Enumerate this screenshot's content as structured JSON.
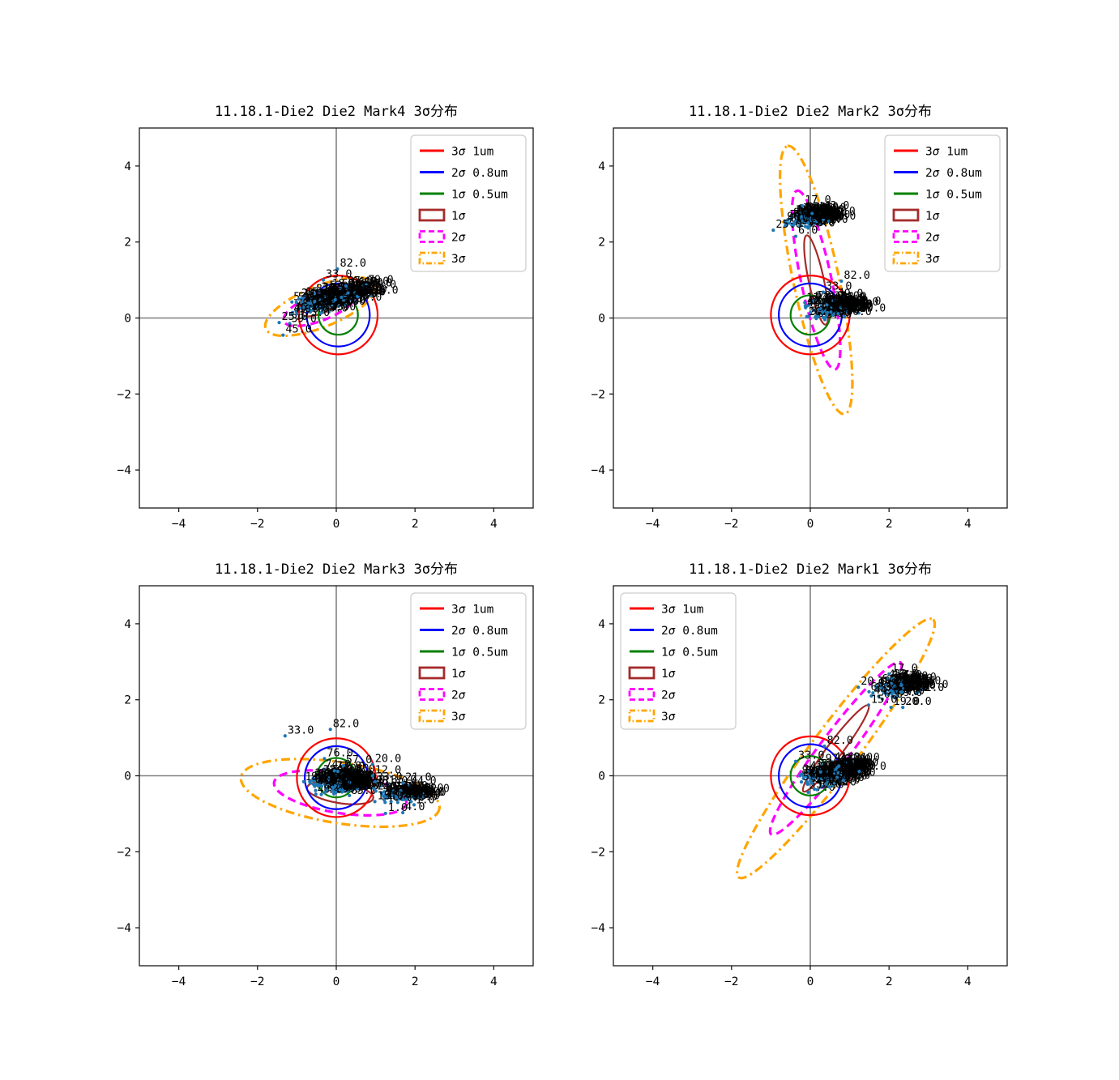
{
  "colors": {
    "red": "#ff0000",
    "blue": "#0000ff",
    "green": "#008000",
    "brown": "#a52a2a",
    "magenta": "#ff00ff",
    "orange": "#ffa500",
    "crosshair": "#808080",
    "dot": "#1f77b4",
    "text": "#000000",
    "legend_frame": "#cccccc"
  },
  "legend": {
    "items": [
      {
        "swatch": "line",
        "color": "red",
        "label": "3σ 1um"
      },
      {
        "swatch": "line",
        "color": "blue",
        "label": "2σ 0.8um"
      },
      {
        "swatch": "line",
        "color": "green",
        "label": "1σ 0.5um"
      },
      {
        "swatch": "rect-solid",
        "color": "brown",
        "label": "1σ"
      },
      {
        "swatch": "rect-dashed",
        "color": "magenta",
        "label": "2σ"
      },
      {
        "swatch": "rect-dashdot",
        "color": "orange",
        "label": "3σ"
      }
    ]
  },
  "chart_data": [
    {
      "type": "scatter",
      "title": "11.18.1-Die2 Die2 Mark4 3σ分布",
      "xlim": [
        -5,
        5
      ],
      "ylim": [
        -5,
        5
      ],
      "xticks": [
        -4,
        -2,
        0,
        2,
        4
      ],
      "yticks": [
        -4,
        -2,
        0,
        2,
        4
      ],
      "grid": false,
      "legend_loc": "upper-right",
      "circle_center": [
        0.05,
        0.08
      ],
      "circles": [
        {
          "label": "3σ 1um",
          "r": 1.0,
          "color": "red"
        },
        {
          "label": "2σ 0.8um",
          "r": 0.8,
          "color": "blue"
        },
        {
          "label": "1σ 0.5um",
          "r": 0.5,
          "color": "green"
        }
      ],
      "ellipse_center": [
        -0.4,
        0.3
      ],
      "ellipse_angle": 22,
      "ellipses": [
        {
          "label": "1σ",
          "a": 0.5,
          "b": 0.18,
          "color": "brown",
          "dash": "solid"
        },
        {
          "label": "2σ",
          "a": 1.0,
          "b": 0.36,
          "color": "magenta",
          "dash": "dashed"
        },
        {
          "label": "3σ",
          "a": 1.5,
          "b": 0.54,
          "color": "orange",
          "dash": "dashdot"
        }
      ],
      "clusters": [
        {
          "cx": -0.22,
          "cy": 0.45,
          "sx": 0.5,
          "sy": 0.13,
          "angle": 18,
          "count": 140,
          "seed": 7
        }
      ],
      "callouts": [
        {
          "x": 0.03,
          "y": 1.29,
          "text": "82.0"
        },
        {
          "x": -0.33,
          "y": 1.0,
          "text": "33.0"
        },
        {
          "x": -0.95,
          "y": 0.5,
          "text": "20.0"
        },
        {
          "x": -1.45,
          "y": -0.12,
          "text": "25.0"
        },
        {
          "x": -1.35,
          "y": -0.45,
          "text": "45.0"
        }
      ]
    },
    {
      "type": "scatter",
      "title": "11.18.1-Die2 Die2 Mark2 3σ分布",
      "xlim": [
        -5,
        5
      ],
      "ylim": [
        -5,
        5
      ],
      "xticks": [
        -4,
        -2,
        0,
        2,
        4
      ],
      "yticks": [
        -4,
        -2,
        0,
        2,
        4
      ],
      "grid": false,
      "legend_loc": "upper-right",
      "circle_center": [
        0.0,
        0.08
      ],
      "circles": [
        {
          "label": "3σ 1um",
          "r": 1.0,
          "color": "red"
        },
        {
          "label": "2σ 0.8um",
          "r": 0.8,
          "color": "blue"
        },
        {
          "label": "1σ 0.5um",
          "r": 0.5,
          "color": "green"
        }
      ],
      "ellipse_center": [
        0.15,
        1.0
      ],
      "ellipse_angle": 102,
      "ellipses": [
        {
          "label": "1σ",
          "a": 1.16,
          "b": 0.2,
          "color": "brown",
          "dash": "solid"
        },
        {
          "label": "2σ",
          "a": 2.32,
          "b": 0.4,
          "color": "magenta",
          "dash": "dashed"
        },
        {
          "label": "3σ",
          "a": 3.48,
          "b": 0.6,
          "color": "orange",
          "dash": "dashdot"
        }
      ],
      "clusters": [
        {
          "cx": -0.15,
          "cy": 2.6,
          "sx": 0.28,
          "sy": 0.11,
          "angle": 5,
          "count": 85,
          "seed": 11
        },
        {
          "cx": 0.55,
          "cy": 0.25,
          "sx": 0.3,
          "sy": 0.12,
          "angle": 8,
          "count": 95,
          "seed": 12
        }
      ],
      "callouts": [
        {
          "x": -0.2,
          "y": 2.95,
          "text": "17.0"
        },
        {
          "x": -0.94,
          "y": 2.31,
          "text": "25.0"
        },
        {
          "x": -0.37,
          "y": 2.15,
          "text": "6.0"
        },
        {
          "x": 0.79,
          "y": 0.97,
          "text": "82.0"
        },
        {
          "x": 0.33,
          "y": 0.68,
          "text": "33.0"
        }
      ]
    },
    {
      "type": "scatter",
      "title": "11.18.1-Die2 Die2 Mark3 3σ分布",
      "xlim": [
        -5,
        5
      ],
      "ylim": [
        -5,
        5
      ],
      "xticks": [
        -4,
        -2,
        0,
        2,
        4
      ],
      "yticks": [
        -4,
        -2,
        0,
        2,
        4
      ],
      "grid": false,
      "legend_loc": "upper-right",
      "circle_center": [
        0.0,
        -0.05
      ],
      "circles": [
        {
          "label": "3σ 1um",
          "r": 1.0,
          "color": "red"
        },
        {
          "label": "2σ 0.8um",
          "r": 0.8,
          "color": "blue"
        },
        {
          "label": "1σ 0.5um",
          "r": 0.5,
          "color": "green"
        }
      ],
      "ellipse_center": [
        0.1,
        -0.45
      ],
      "ellipse_angle": -9,
      "ellipses": [
        {
          "label": "1σ",
          "a": 0.85,
          "b": 0.27,
          "color": "brown",
          "dash": "solid"
        },
        {
          "label": "2σ",
          "a": 1.7,
          "b": 0.53,
          "color": "magenta",
          "dash": "dashed"
        },
        {
          "label": "3σ",
          "a": 2.55,
          "b": 0.8,
          "color": "orange",
          "dash": "dashdot"
        }
      ],
      "clusters": [
        {
          "cx": -0.08,
          "cy": -0.2,
          "sx": 0.34,
          "sy": 0.16,
          "angle": -5,
          "count": 125,
          "seed": 21
        },
        {
          "cx": 1.6,
          "cy": -0.5,
          "sx": 0.3,
          "sy": 0.15,
          "angle": -10,
          "count": 55,
          "seed": 22
        }
      ],
      "callouts": [
        {
          "x": -1.3,
          "y": 1.05,
          "text": "33.0"
        },
        {
          "x": -0.15,
          "y": 1.22,
          "text": "82.0"
        },
        {
          "x": -0.3,
          "y": 0.45,
          "text": "76.0"
        },
        {
          "x": 0.18,
          "y": 0.27,
          "text": "57.0"
        },
        {
          "x": 0.92,
          "y": 0.3,
          "text": "20.0"
        },
        {
          "x": 0.92,
          "y": 0.0,
          "text": "12.0"
        },
        {
          "x": 1.69,
          "y": -0.19,
          "text": "21.0"
        },
        {
          "x": 1.9,
          "y": -0.68,
          "text": "28.0"
        },
        {
          "x": 0.98,
          "y": -0.68,
          "text": "15.0"
        },
        {
          "x": 1.25,
          "y": -0.99,
          "text": "1.0"
        },
        {
          "x": 1.69,
          "y": -0.97,
          "text": "4.0"
        }
      ]
    },
    {
      "type": "scatter",
      "title": "11.18.1-Die2 Die2 Mark1 3σ分布",
      "xlim": [
        -5,
        5
      ],
      "ylim": [
        -5,
        5
      ],
      "xticks": [
        -4,
        -2,
        0,
        2,
        4
      ],
      "yticks": [
        -4,
        -2,
        0,
        2,
        4
      ],
      "grid": false,
      "legend_loc": "upper-left",
      "circle_center": [
        0.0,
        0.0
      ],
      "circles": [
        {
          "label": "3σ 1um",
          "r": 1.0,
          "color": "red"
        },
        {
          "label": "2σ 0.8um",
          "r": 0.8,
          "color": "blue"
        },
        {
          "label": "1σ 0.5um",
          "r": 0.5,
          "color": "green"
        }
      ],
      "ellipse_center": [
        0.65,
        0.72
      ],
      "ellipse_angle": 53,
      "ellipses": [
        {
          "label": "1σ",
          "a": 1.37,
          "b": 0.2,
          "color": "brown",
          "dash": "solid"
        },
        {
          "label": "2σ",
          "a": 2.73,
          "b": 0.4,
          "color": "magenta",
          "dash": "dashed"
        },
        {
          "label": "3σ",
          "a": 4.1,
          "b": 0.6,
          "color": "orange",
          "dash": "dashdot"
        }
      ],
      "clusters": [
        {
          "cx": 0.5,
          "cy": 0.02,
          "sx": 0.34,
          "sy": 0.15,
          "angle": 12,
          "count": 125,
          "seed": 31
        },
        {
          "cx": 2.15,
          "cy": 2.28,
          "sx": 0.3,
          "sy": 0.13,
          "angle": 10,
          "count": 75,
          "seed": 32
        }
      ],
      "callouts": [
        {
          "x": 0.36,
          "y": 0.78,
          "text": "82.0"
        },
        {
          "x": -0.37,
          "y": 0.38,
          "text": "33.0"
        },
        {
          "x": 1.22,
          "y": 2.33,
          "text": "20.0"
        },
        {
          "x": 2.0,
          "y": 2.68,
          "text": "17.0"
        },
        {
          "x": 1.55,
          "y": 2.1,
          "text": "44.0"
        },
        {
          "x": 1.48,
          "y": 1.86,
          "text": "15.0"
        },
        {
          "x": 2.05,
          "y": 1.8,
          "text": "19.0"
        },
        {
          "x": 2.35,
          "y": 1.8,
          "text": "20.0"
        }
      ]
    }
  ]
}
